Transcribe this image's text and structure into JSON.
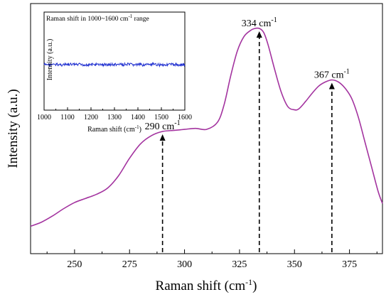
{
  "chart_data": [
    {
      "type": "line",
      "xlabel": "Raman shift (cm",
      "xlabel_sup": "-1",
      "xlabel_suffix": ")",
      "ylabel": "Intensity (a.u.)",
      "xlim": [
        230,
        390
      ],
      "ylim": [
        0,
        1
      ],
      "xticks": [
        250,
        275,
        300,
        325,
        350,
        375
      ],
      "yticks_shown": false,
      "grid": false,
      "color": "#a3339f",
      "series": [
        {
          "x": [
            230,
            235,
            240,
            245,
            250,
            255,
            260,
            265,
            270,
            275,
            280,
            285,
            290,
            295,
            300,
            305,
            310,
            315,
            318,
            321,
            324,
            327,
            330,
            332,
            334,
            336,
            338,
            341,
            344,
            347,
            350,
            352,
            355,
            358,
            361,
            364,
            367,
            370,
            373,
            376,
            379,
            382,
            385,
            388,
            390
          ],
          "y": [
            0.04,
            0.06,
            0.09,
            0.125,
            0.155,
            0.175,
            0.195,
            0.225,
            0.285,
            0.37,
            0.44,
            0.48,
            0.5,
            0.505,
            0.51,
            0.515,
            0.51,
            0.545,
            0.63,
            0.77,
            0.89,
            0.96,
            0.99,
            1.0,
            1.0,
            0.98,
            0.92,
            0.8,
            0.69,
            0.62,
            0.605,
            0.61,
            0.645,
            0.685,
            0.72,
            0.74,
            0.75,
            0.74,
            0.71,
            0.66,
            0.57,
            0.45,
            0.33,
            0.21,
            0.15
          ]
        }
      ],
      "annotations": [
        {
          "x": 290,
          "y": 0.5,
          "text": "290 cm",
          "sup": "-1"
        },
        {
          "x": 334,
          "y": 1.0,
          "text": "334 cm",
          "sup": "-1"
        },
        {
          "x": 367,
          "y": 0.75,
          "text": "367 cm",
          "sup": "-1"
        }
      ]
    },
    {
      "type": "line",
      "title": "Raman shift in 1000~1600 cm",
      "title_sup": "-1",
      "title_suffix": " range",
      "xlabel": "Raman shift (cm",
      "xlabel_sup": "-1",
      "xlabel_suffix": ")",
      "ylabel": "Intensity (a.u.)",
      "xlim": [
        1000,
        1600
      ],
      "ylim": [
        0,
        1
      ],
      "xticks": [
        1000,
        1100,
        1200,
        1300,
        1400,
        1500,
        1600
      ],
      "color": "#1f2fd0",
      "series": [
        {
          "x_start": 1000,
          "x_end": 1600,
          "level": 0.5,
          "noise": 0.02
        }
      ]
    }
  ]
}
